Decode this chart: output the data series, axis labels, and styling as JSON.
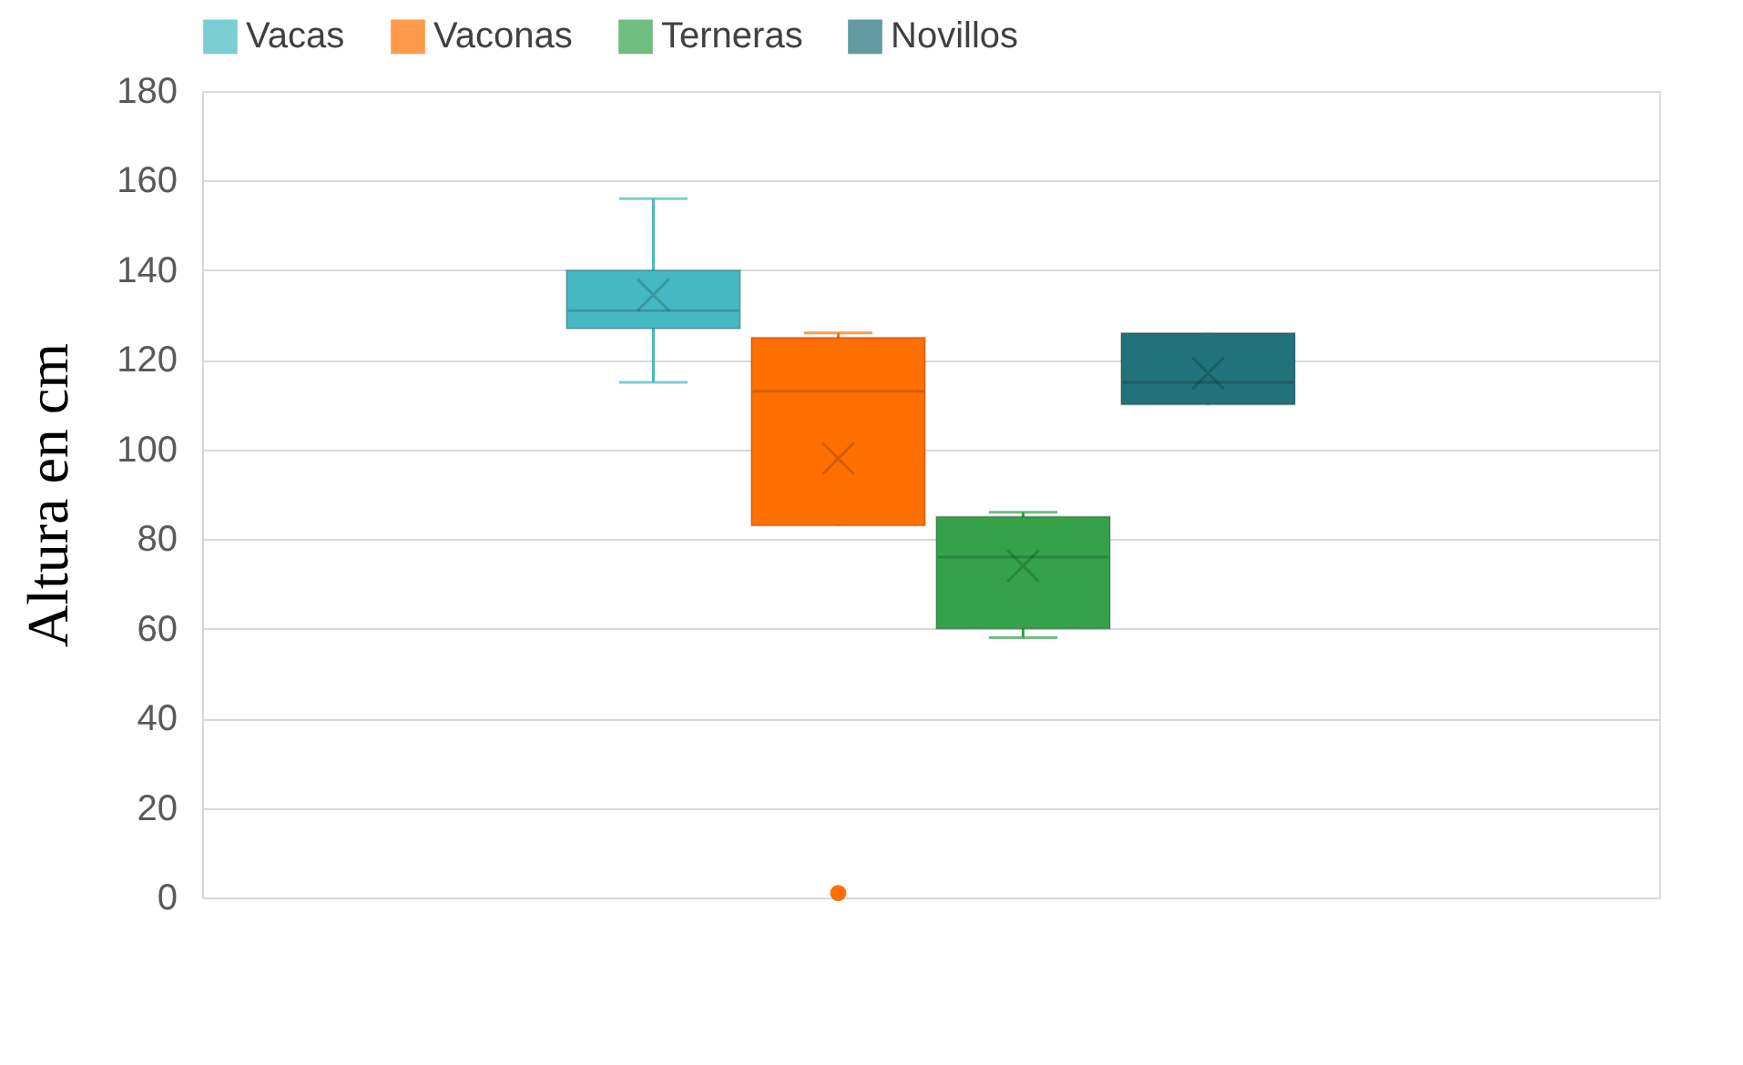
{
  "chart_data": {
    "type": "box",
    "ylabel": "Altura en cm",
    "categories": [
      null
    ],
    "series": [
      {
        "name": "Vacas",
        "color": "#45b9c3",
        "boxes": [
          {
            "low": 115,
            "q1": 127,
            "median": 131,
            "q3": 140,
            "high": 156,
            "mean": 134.5
          }
        ]
      },
      {
        "name": "Vaconas",
        "color": "#ff7000",
        "boxes": [
          {
            "low": 83,
            "q1": 83,
            "median": 113,
            "q3": 125,
            "high": 126,
            "mean": 98,
            "outliers": [
              1
            ]
          }
        ]
      },
      {
        "name": "Terneras",
        "color": "#35a24b",
        "boxes": [
          {
            "low": 58,
            "q1": 60,
            "median": 76,
            "q3": 85,
            "high": 86,
            "mean": 74
          }
        ]
      },
      {
        "name": "Novillos",
        "color": "#21727a",
        "boxes": [
          {
            "low": 110,
            "q1": 110,
            "median": 115,
            "q3": 126,
            "high": 126,
            "mean": 117
          }
        ]
      }
    ],
    "ylim": [
      0,
      180
    ],
    "yticks": [
      0,
      20,
      40,
      60,
      80,
      100,
      120,
      140,
      160,
      180
    ],
    "grid": "y",
    "legend": "top",
    "tick_labels": "y"
  }
}
